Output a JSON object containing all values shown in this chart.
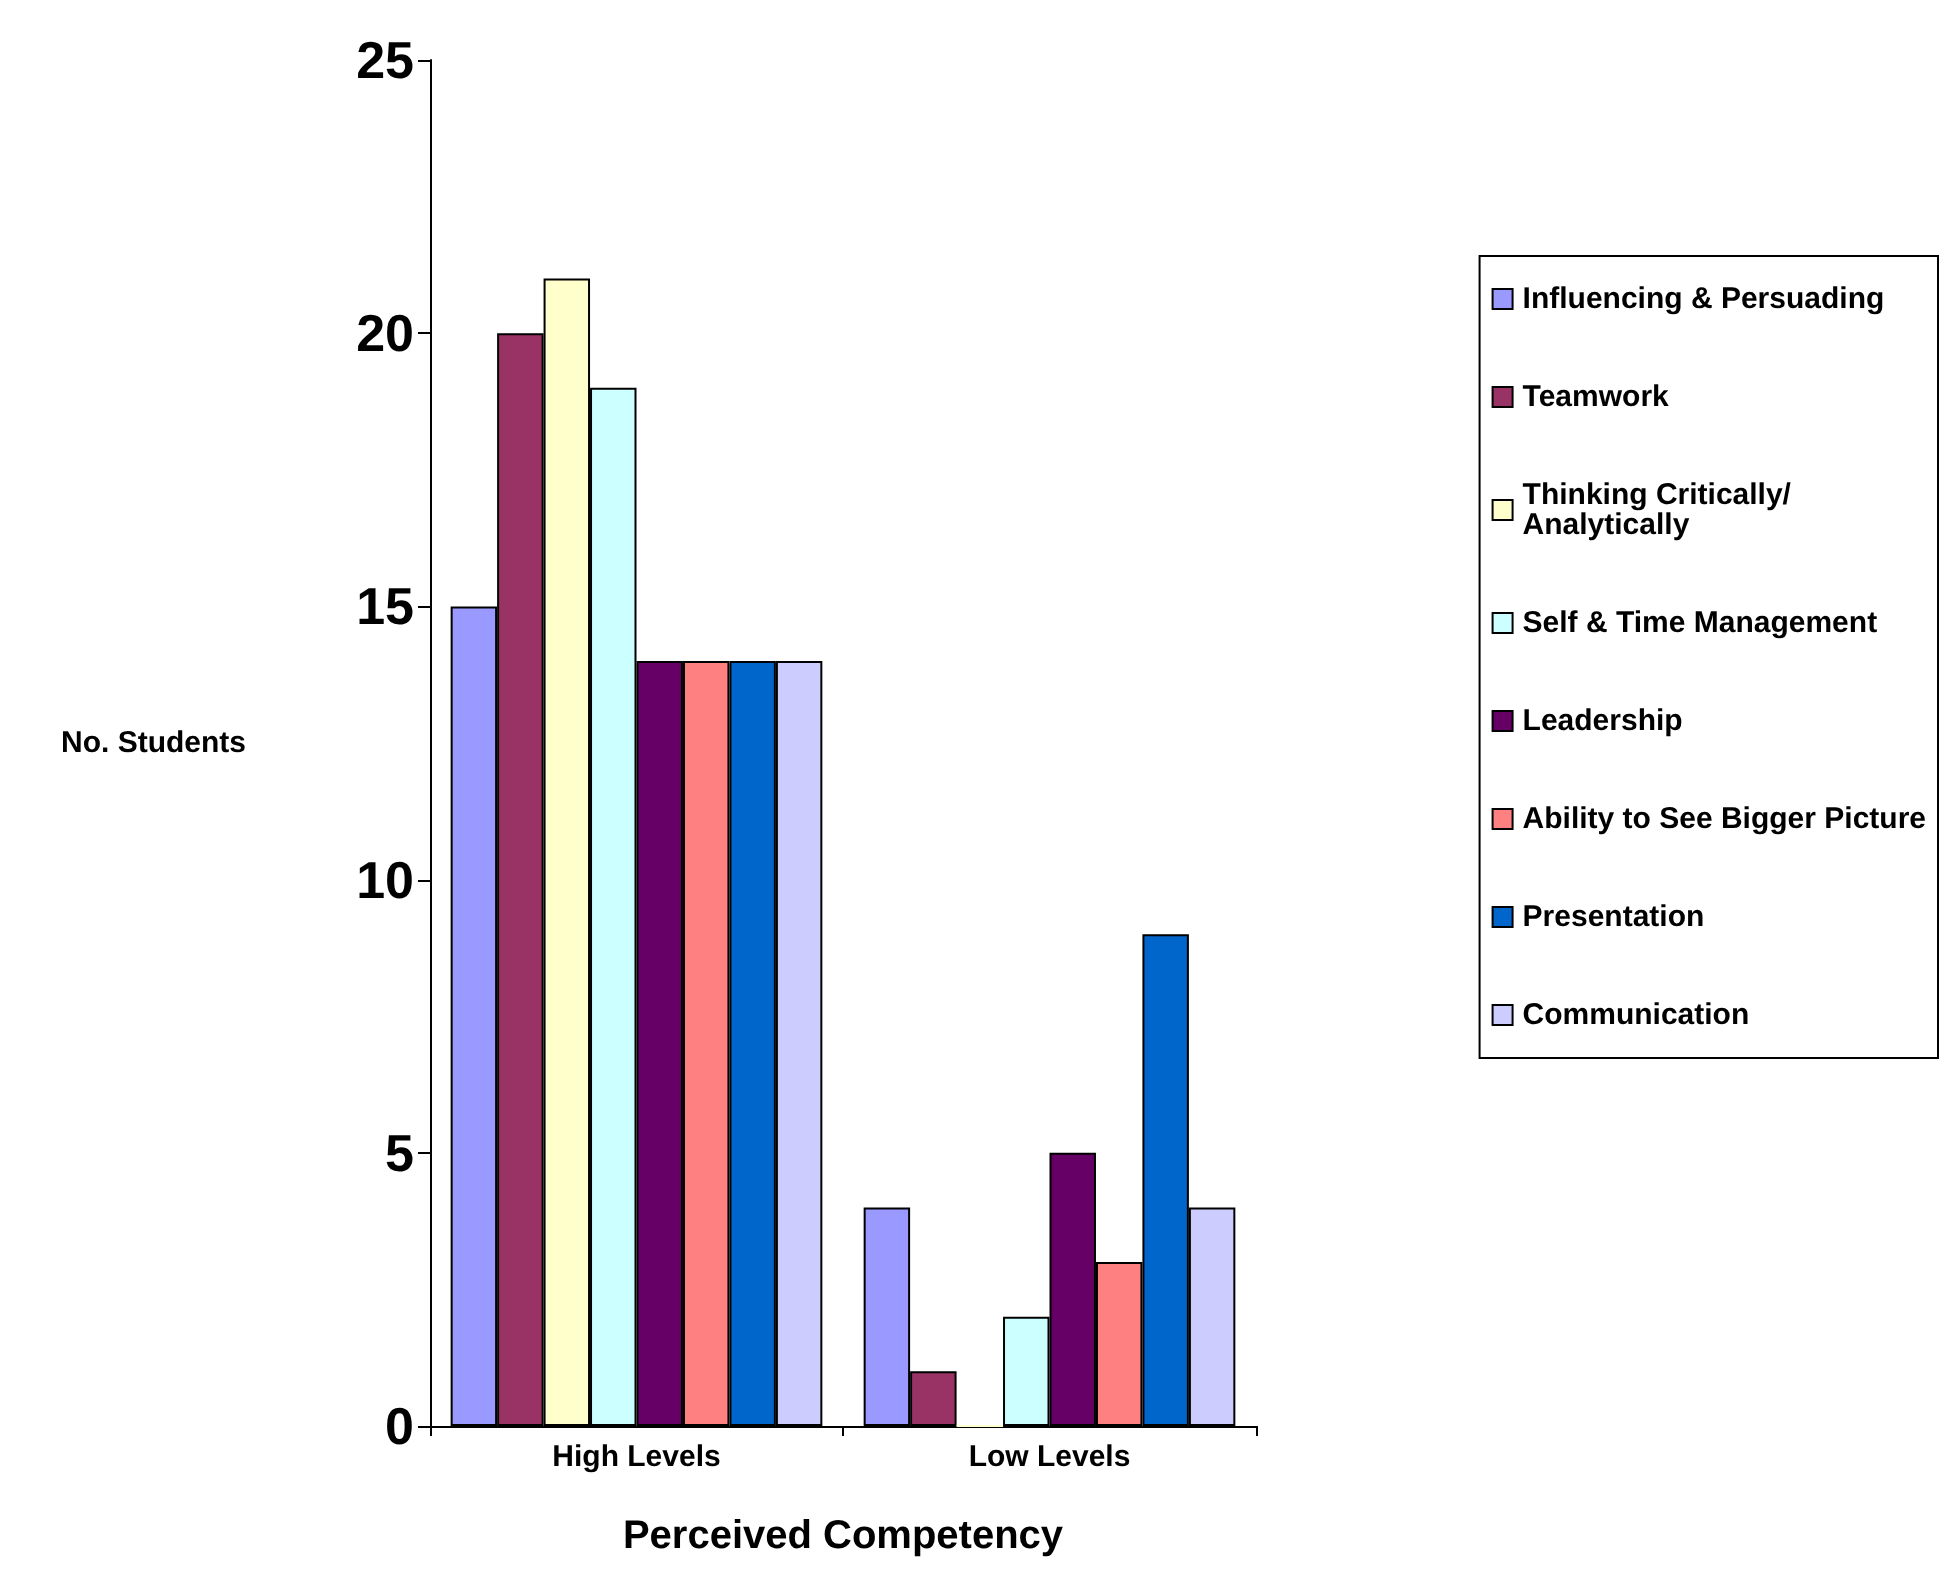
{
  "chart_data": {
    "type": "bar",
    "xlabel": "Perceived Competency",
    "ylabel": "No. Students",
    "categories": [
      "High Levels",
      "Low Levels"
    ],
    "series": [
      {
        "name": "Influencing & Persuading",
        "color": "#9999ff",
        "values": [
          15,
          4
        ]
      },
      {
        "name": "Teamwork",
        "color": "#993366",
        "values": [
          20,
          1
        ]
      },
      {
        "name": "Thinking Critically/ Analytically",
        "color": "#ffffcc",
        "values": [
          21,
          0
        ]
      },
      {
        "name": "Self & Time Management",
        "color": "#ccffff",
        "values": [
          19,
          2
        ]
      },
      {
        "name": "Leadership",
        "color": "#660066",
        "values": [
          14,
          5
        ]
      },
      {
        "name": "Ability to See Bigger Picture",
        "color": "#ff8080",
        "values": [
          14,
          3
        ]
      },
      {
        "name": "Presentation",
        "color": "#0066cc",
        "values": [
          14,
          9
        ]
      },
      {
        "name": "Communication",
        "color": "#ccccff",
        "values": [
          14,
          4
        ]
      }
    ],
    "ylim": [
      0,
      25
    ],
    "yticks": [
      0,
      5,
      10,
      15,
      20,
      25
    ],
    "grid": false,
    "legend": "right"
  }
}
